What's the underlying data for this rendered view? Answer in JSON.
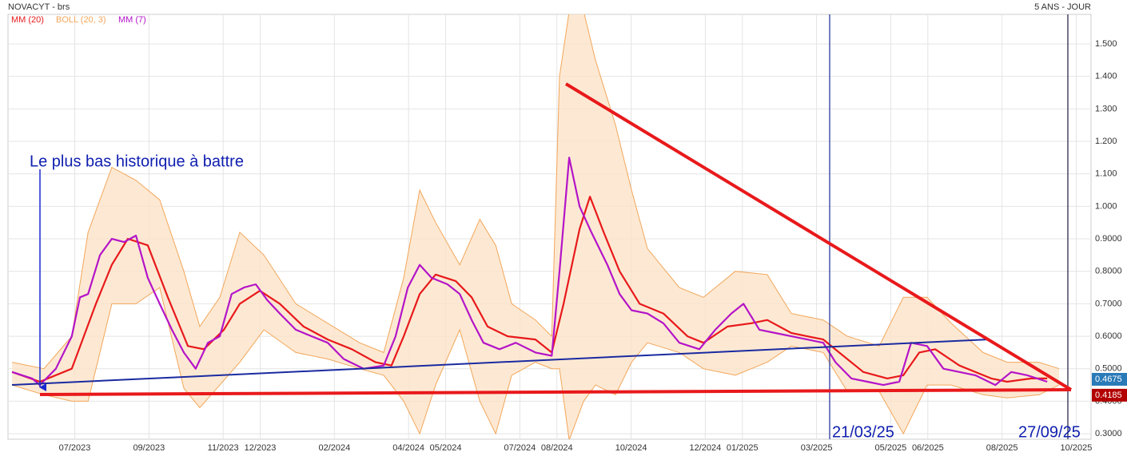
{
  "chart_data": {
    "type": "line",
    "title": "NOVACYT - brs",
    "period": "5 ANS - JOUR",
    "xlim": [
      4.2,
      33.4
    ],
    "xticks": [
      {
        "value": 6,
        "label": "07/2023"
      },
      {
        "value": 8,
        "label": "09/2023"
      },
      {
        "value": 10,
        "label": "11/2023"
      },
      {
        "value": 11,
        "label": "12/2023"
      },
      {
        "value": 13,
        "label": "02/2024"
      },
      {
        "value": 15,
        "label": "04/2024"
      },
      {
        "value": 16,
        "label": "05/2024"
      },
      {
        "value": 18,
        "label": "07/2024"
      },
      {
        "value": 19,
        "label": "08/2024"
      },
      {
        "value": 21,
        "label": "10/2024"
      },
      {
        "value": 23,
        "label": "12/2024"
      },
      {
        "value": 24,
        "label": "01/2025"
      },
      {
        "value": 26,
        "label": "03/2025"
      },
      {
        "value": 28,
        "label": "05/2025"
      },
      {
        "value": 29,
        "label": "06/2025"
      },
      {
        "value": 31,
        "label": "08/2025"
      },
      {
        "value": 33,
        "label": "10/2025"
      }
    ],
    "ylim": [
      0.283,
      1.591
    ],
    "yticks": [
      {
        "value": 0.3,
        "label": "0.3000"
      },
      {
        "value": 0.4,
        "label": "0.4000"
      },
      {
        "value": 0.5,
        "label": "0.5000"
      },
      {
        "value": 0.6,
        "label": "0.6000"
      },
      {
        "value": 0.7,
        "label": "0.7000"
      },
      {
        "value": 0.8,
        "label": "0.8000"
      },
      {
        "value": 0.9,
        "label": "0.9000"
      },
      {
        "value": 1.0,
        "label": "1.000"
      },
      {
        "value": 1.1,
        "label": "1.100"
      },
      {
        "value": 1.2,
        "label": "1.200"
      },
      {
        "value": 1.3,
        "label": "1.300"
      },
      {
        "value": 1.4,
        "label": "1.400"
      },
      {
        "value": 1.5,
        "label": "1.500"
      }
    ],
    "grid": true,
    "bands": {
      "name": "BOLL (20, 3)",
      "color": "#f2a65a",
      "fill": "#fde3c8",
      "x": [
        4.31,
        5.17,
        5.92,
        6.36,
        7.0,
        7.65,
        8.29,
        8.94,
        9.37,
        9.91,
        10.45,
        11.1,
        11.96,
        12.82,
        13.68,
        14.33,
        14.87,
        15.3,
        15.73,
        16.38,
        16.92,
        17.35,
        17.78,
        18.42,
        18.86,
        19.07,
        19.33,
        19.72,
        20.04,
        20.58,
        21.01,
        21.44,
        22.3,
        22.95,
        23.81,
        24.67,
        25.32,
        26.18,
        26.83,
        27.69,
        28.34,
        28.98,
        29.63,
        30.49,
        31.14,
        32.0,
        32.54
      ],
      "upper": [
        0.52,
        0.5,
        0.6,
        0.92,
        1.12,
        1.08,
        1.02,
        0.8,
        0.63,
        0.72,
        0.92,
        0.85,
        0.7,
        0.64,
        0.58,
        0.55,
        0.78,
        1.05,
        0.95,
        0.82,
        0.96,
        0.88,
        0.7,
        0.65,
        0.6,
        1.4,
        1.6,
        1.6,
        1.45,
        1.25,
        1.05,
        0.87,
        0.75,
        0.72,
        0.8,
        0.79,
        0.67,
        0.65,
        0.6,
        0.57,
        0.72,
        0.72,
        0.64,
        0.55,
        0.52,
        0.52,
        0.5
      ],
      "lower": [
        0.45,
        0.42,
        0.4,
        0.4,
        0.7,
        0.7,
        0.75,
        0.44,
        0.38,
        0.45,
        0.52,
        0.62,
        0.55,
        0.53,
        0.5,
        0.48,
        0.4,
        0.3,
        0.45,
        0.62,
        0.4,
        0.3,
        0.48,
        0.52,
        0.5,
        0.5,
        0.28,
        0.4,
        0.45,
        0.42,
        0.52,
        0.58,
        0.55,
        0.5,
        0.48,
        0.52,
        0.57,
        0.55,
        0.43,
        0.43,
        0.3,
        0.45,
        0.45,
        0.42,
        0.41,
        0.42,
        0.45
      ]
    },
    "series": [
      {
        "name": "MM (20)",
        "color": "#e8191b",
        "x": [
          4.31,
          5.06,
          5.92,
          6.57,
          7.0,
          7.43,
          7.97,
          8.51,
          9.05,
          9.48,
          10.02,
          10.45,
          10.99,
          11.53,
          12.17,
          12.82,
          13.47,
          14.11,
          14.54,
          14.87,
          15.3,
          15.73,
          16.27,
          16.7,
          17.13,
          17.67,
          18.42,
          18.86,
          19.18,
          19.61,
          19.89,
          20.26,
          20.69,
          21.23,
          21.87,
          22.52,
          22.95,
          23.6,
          24.24,
          24.67,
          25.32,
          26.18,
          26.61,
          27.26,
          27.91,
          28.34,
          28.77,
          29.2,
          29.85,
          30.71,
          31.14,
          31.79,
          32.22
        ],
        "values": [
          0.49,
          0.46,
          0.5,
          0.7,
          0.82,
          0.9,
          0.88,
          0.72,
          0.57,
          0.56,
          0.62,
          0.7,
          0.74,
          0.7,
          0.63,
          0.59,
          0.56,
          0.52,
          0.51,
          0.6,
          0.73,
          0.79,
          0.77,
          0.72,
          0.63,
          0.6,
          0.59,
          0.55,
          0.7,
          0.93,
          1.03,
          0.92,
          0.8,
          0.7,
          0.67,
          0.6,
          0.58,
          0.63,
          0.64,
          0.65,
          0.61,
          0.59,
          0.55,
          0.49,
          0.47,
          0.48,
          0.55,
          0.56,
          0.51,
          0.47,
          0.46,
          0.47,
          0.47
        ]
      },
      {
        "name": "MM (7)",
        "color": "#b414c8",
        "x": [
          4.31,
          4.85,
          5.06,
          5.49,
          5.92,
          6.14,
          6.36,
          6.68,
          7.0,
          7.33,
          7.65,
          7.97,
          8.29,
          8.62,
          8.94,
          9.26,
          9.59,
          9.91,
          10.23,
          10.56,
          10.88,
          11.2,
          11.53,
          11.96,
          12.39,
          12.82,
          13.25,
          13.79,
          14.33,
          14.65,
          14.98,
          15.3,
          15.62,
          16.05,
          16.38,
          16.7,
          17.02,
          17.45,
          17.89,
          18.42,
          18.86,
          19.07,
          19.33,
          19.61,
          19.93,
          20.36,
          20.69,
          21.01,
          21.44,
          21.87,
          22.3,
          22.84,
          23.27,
          23.7,
          24.03,
          24.46,
          24.89,
          25.32,
          25.75,
          26.18,
          26.51,
          26.94,
          27.37,
          27.8,
          28.23,
          28.55,
          28.98,
          29.42,
          29.85,
          30.28,
          30.82,
          31.25,
          31.68,
          32.22
        ],
        "values": [
          0.49,
          0.47,
          0.45,
          0.5,
          0.6,
          0.72,
          0.73,
          0.85,
          0.9,
          0.89,
          0.91,
          0.78,
          0.7,
          0.62,
          0.55,
          0.5,
          0.58,
          0.6,
          0.73,
          0.75,
          0.76,
          0.71,
          0.67,
          0.62,
          0.6,
          0.58,
          0.53,
          0.5,
          0.51,
          0.6,
          0.75,
          0.82,
          0.78,
          0.76,
          0.73,
          0.65,
          0.58,
          0.56,
          0.58,
          0.55,
          0.54,
          0.8,
          1.15,
          1.0,
          0.92,
          0.82,
          0.73,
          0.68,
          0.67,
          0.64,
          0.58,
          0.56,
          0.62,
          0.67,
          0.7,
          0.62,
          0.61,
          0.6,
          0.59,
          0.58,
          0.52,
          0.47,
          0.46,
          0.45,
          0.46,
          0.58,
          0.57,
          0.5,
          0.49,
          0.48,
          0.45,
          0.49,
          0.48,
          0.46
        ]
      }
    ],
    "last_price": 0.4675,
    "support_price": 0.4185,
    "annotations": {
      "low": "Le plus bas historique à battre",
      "date1": "21/03/25",
      "date2": "27/09/25"
    }
  }
}
